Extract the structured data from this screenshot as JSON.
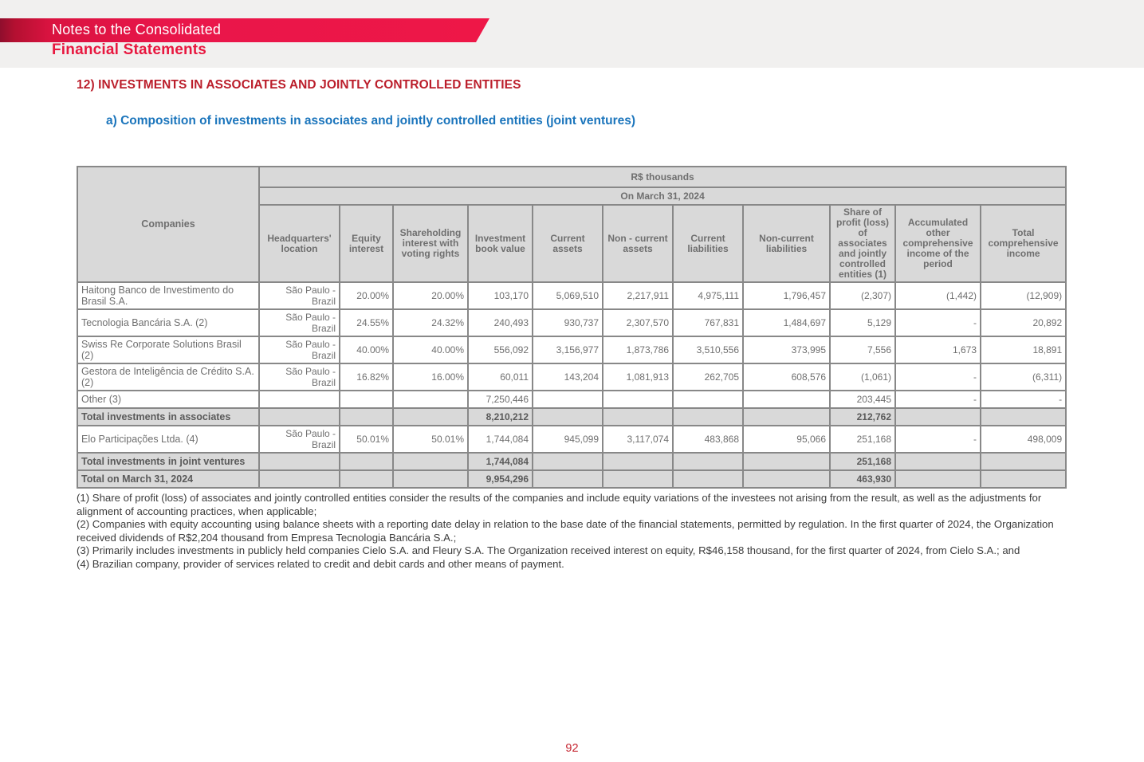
{
  "page": {
    "banner_line1": "Notes to the Consolidated",
    "banner_line2": "Financial Statements",
    "section_title": "12) INVESTMENTS IN ASSOCIATES AND JOINTLY CONTROLLED ENTITIES",
    "subsection_title": "a) Composition of investments in associates and jointly controlled entities (joint ventures)",
    "page_number": "92"
  },
  "colors": {
    "banner_red": "#e9164a",
    "subtitle_red": "#e8173f",
    "section_red": "#bb1e2b",
    "subsection_blue": "#1b75bc",
    "table_header_gray": "#d9d9d9",
    "table_border_gray": "#888888"
  },
  "table": {
    "unit_label": "R$ thousands",
    "period_label": "On March 31, 2024",
    "companies_header": "Companies",
    "columns": [
      "Headquarters' location",
      "Equity interest",
      "Shareholding interest with voting rights",
      "Investment book value",
      "Current assets",
      "Non - current assets",
      "Current liabilities",
      "Non-current liabilities",
      "Share of profit (loss) of associates and jointly controlled entities (1)",
      "Accumulated other comprehensive income of the period",
      "Total comprehensive income"
    ],
    "rows": [
      {
        "type": "data",
        "cells": [
          "Haitong Banco de Investimento do Brasil S.A.",
          "São Paulo - Brazil",
          "20.00%",
          "20.00%",
          "103,170",
          "5,069,510",
          "2,217,911",
          "4,975,111",
          "1,796,457",
          "(2,307)",
          "(1,442)",
          "(12,909)"
        ]
      },
      {
        "type": "data",
        "cells": [
          "Tecnologia Bancária S.A. (2)",
          "São Paulo - Brazil",
          "24.55%",
          "24.32%",
          "240,493",
          "930,737",
          "2,307,570",
          "767,831",
          "1,484,697",
          "5,129",
          "-",
          "20,892"
        ]
      },
      {
        "type": "data",
        "cells": [
          "Swiss Re Corporate Solutions Brasil (2)",
          "São Paulo - Brazil",
          "40.00%",
          "40.00%",
          "556,092",
          "3,156,977",
          "1,873,786",
          "3,510,556",
          "373,995",
          "7,556",
          "1,673",
          "18,891"
        ]
      },
      {
        "type": "data",
        "cells": [
          "Gestora de Inteligência de Crédito S.A. (2)",
          "São Paulo - Brazil",
          "16.82%",
          "16.00%",
          "60,011",
          "143,204",
          "1,081,913",
          "262,705",
          "608,576",
          "(1,061)",
          "-",
          "(6,311)"
        ]
      },
      {
        "type": "data-short",
        "cells": [
          "Other (3)",
          "",
          "",
          "",
          "7,250,446",
          "",
          "",
          "",
          "",
          "203,445",
          "-",
          "-"
        ]
      },
      {
        "type": "total",
        "cells": [
          "Total investments in associates",
          "",
          "",
          "",
          "8,210,212",
          "",
          "",
          "",
          "",
          "212,762",
          "",
          ""
        ]
      },
      {
        "type": "data",
        "cells": [
          "Elo Participações Ltda. (4)",
          "São Paulo - Brazil",
          "50.01%",
          "50.01%",
          "1,744,084",
          "945,099",
          "3,117,074",
          "483,868",
          "95,066",
          "251,168",
          "-",
          "498,009"
        ]
      },
      {
        "type": "total",
        "cells": [
          "Total investments in joint ventures",
          "",
          "",
          "",
          "1,744,084",
          "",
          "",
          "",
          "",
          "251,168",
          "",
          ""
        ]
      },
      {
        "type": "total",
        "cells": [
          "Total on March 31, 2024",
          "",
          "",
          "",
          "9,954,296",
          "",
          "",
          "",
          "",
          "463,930",
          "",
          ""
        ]
      }
    ]
  },
  "footnotes": [
    "(1) Share of profit (loss) of associates and jointly controlled entities consider the results of the companies and include equity variations of the investees not arising from the result, as well as the adjustments for alignment of accounting practices, when applicable;",
    "(2) Companies with equity accounting using balance sheets with a reporting date delay in relation to the base date of the financial statements, permitted by regulation. In the first quarter of 2024, the Organization received dividends of R$2,204 thousand from Empresa Tecnologia Bancária S.A.;",
    "(3) Primarily includes investments in publicly held companies Cielo S.A. and Fleury S.A. The Organization received interest on equity, R$46,158 thousand, for the first quarter of 2024, from Cielo S.A.; and",
    "(4) Brazilian company, provider of services related to credit and debit cards and other means of payment."
  ]
}
